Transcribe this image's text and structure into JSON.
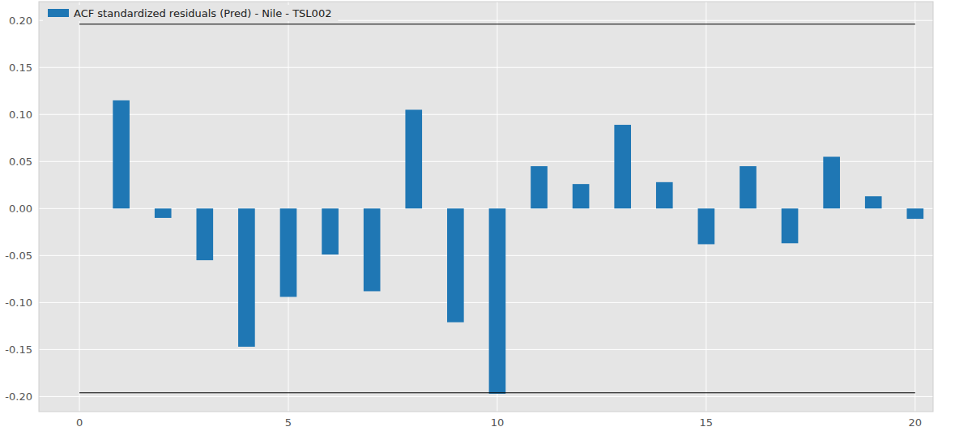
{
  "chart_data": {
    "type": "bar",
    "x": [
      1,
      2,
      3,
      4,
      5,
      6,
      7,
      8,
      9,
      10,
      11,
      12,
      13,
      14,
      15,
      16,
      17,
      18,
      19,
      20
    ],
    "series": [
      {
        "name": "ACF standardized residuals (Pred) - Nile - TSL002",
        "color": "#1f77b4",
        "values": [
          0.115,
          -0.01,
          -0.055,
          -0.147,
          -0.094,
          -0.049,
          -0.088,
          0.105,
          -0.121,
          -0.197,
          0.045,
          0.026,
          0.089,
          0.028,
          -0.038,
          0.045,
          -0.037,
          0.055,
          0.013,
          -0.011
        ]
      }
    ],
    "confidence_bounds": {
      "x": [
        0,
        20
      ],
      "upper": [
        0.196,
        0.196
      ],
      "lower": [
        -0.196,
        -0.196
      ],
      "color": "#000000"
    },
    "xlim": [
      -0.97,
      20.43
    ],
    "ylim": [
      -0.216,
      0.22
    ],
    "xticks": [
      0,
      5,
      10,
      15,
      20
    ],
    "yticks": [
      {
        "value": -0.2,
        "label": "-0.20"
      },
      {
        "value": -0.15,
        "label": "-0.15"
      },
      {
        "value": -0.1,
        "label": "-0.10"
      },
      {
        "value": -0.05,
        "label": "-0.05"
      },
      {
        "value": 0,
        "label": "0.00"
      },
      {
        "value": 0.05,
        "label": "0.05"
      },
      {
        "value": 0.1,
        "label": "0.10"
      },
      {
        "value": 0.15,
        "label": "0.15"
      },
      {
        "value": 0.2,
        "label": "0.20"
      }
    ],
    "grid": true,
    "legend": "upper left"
  }
}
